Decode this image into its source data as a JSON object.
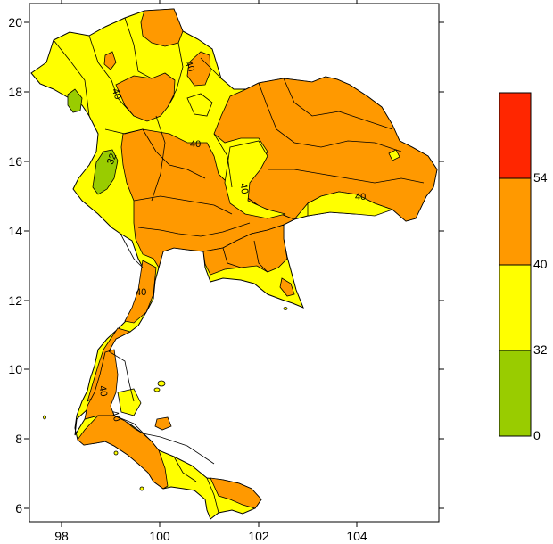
{
  "map": {
    "x_ticks": [
      "98",
      "100",
      "102",
      "104"
    ],
    "y_ticks": [
      "20",
      "18",
      "16",
      "14",
      "12",
      "10",
      "8",
      "6"
    ],
    "contour_labels": [
      "40",
      "40",
      "40",
      "40",
      "40",
      "40",
      "40",
      "40",
      "32"
    ]
  },
  "legend": {
    "bins": [
      {
        "range": "0-32",
        "color": "#99cc00"
      },
      {
        "range": "32-40",
        "color": "#ffff00"
      },
      {
        "range": "40-54",
        "color": "#ff9900"
      },
      {
        "range": "54+",
        "color": "#ff2600"
      }
    ],
    "labels": [
      "54",
      "40",
      "32",
      "0"
    ]
  },
  "colors": {
    "land_base": "#ffff00",
    "hot": "#ff9900",
    "cool": "#99cc00",
    "border": "#000000"
  }
}
